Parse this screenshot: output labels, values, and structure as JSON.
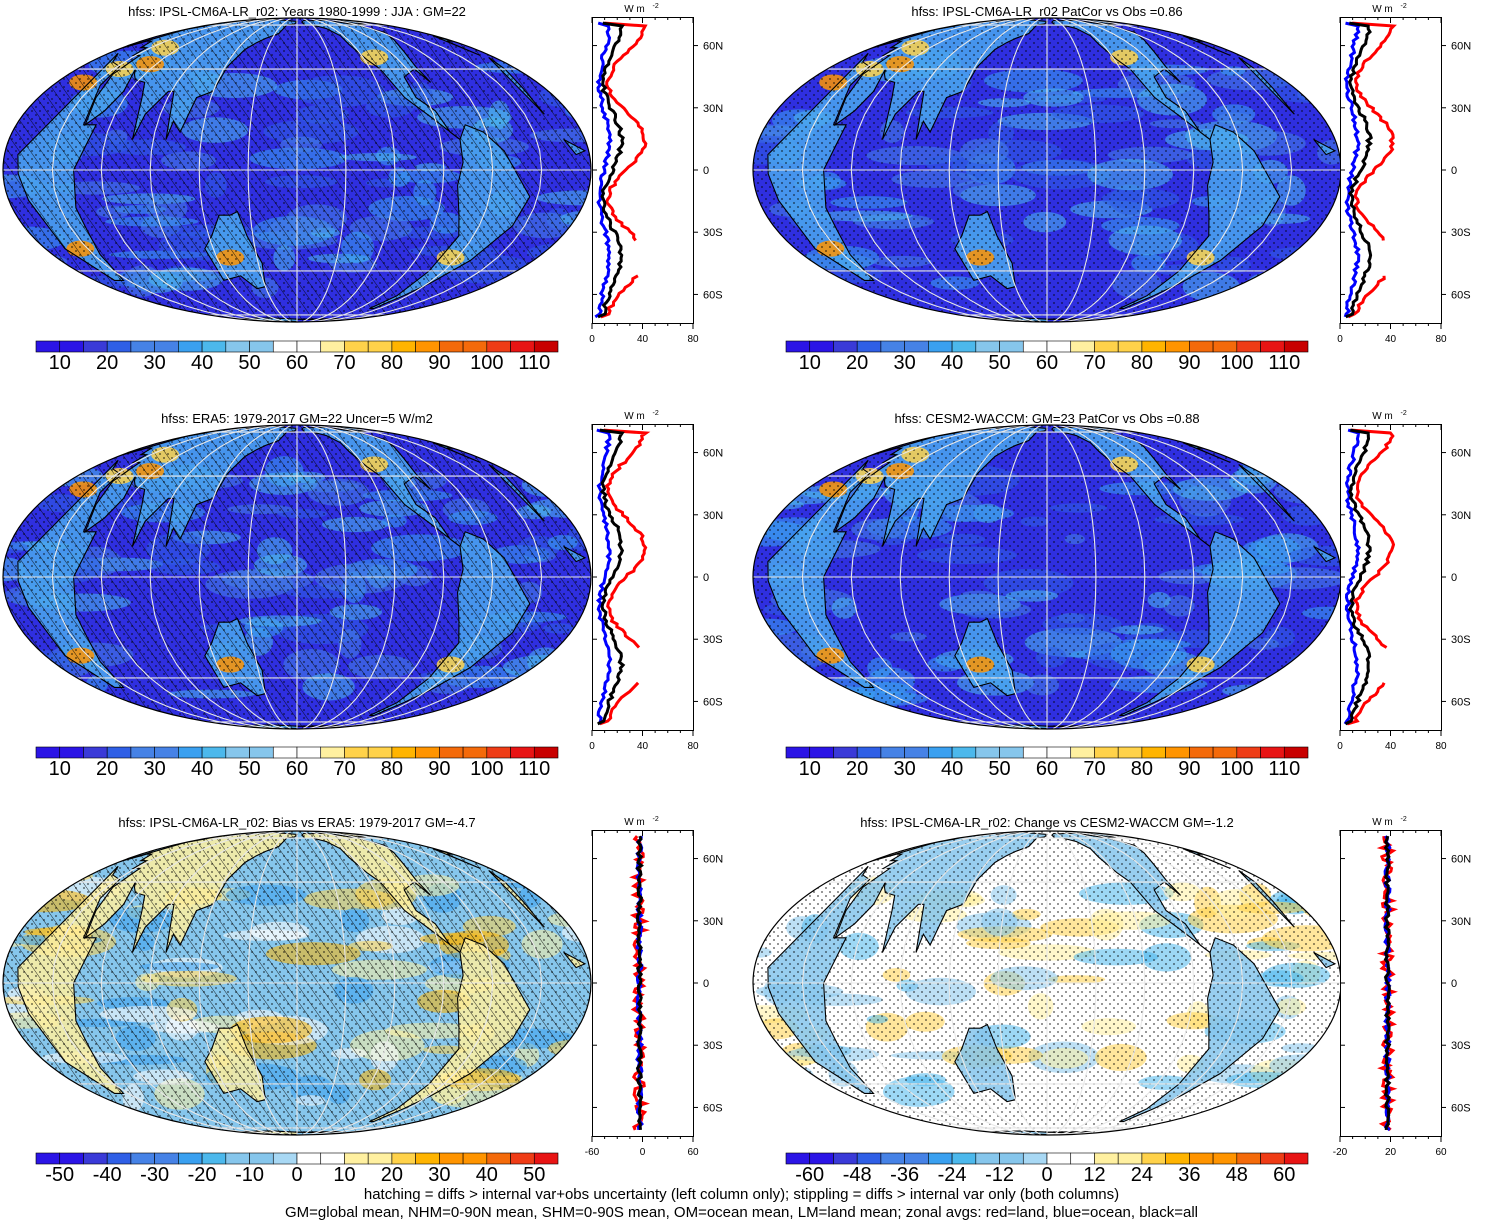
{
  "colors": {
    "palette": [
      "#2b14e6",
      "#3a3ad8",
      "#2f5fe6",
      "#4682e6",
      "#3aa0f0",
      "#4cb8ec",
      "#86c6ec",
      "#ffffff",
      "#ffffff",
      "#fff0a0",
      "#ffd24a",
      "#ffb400",
      "#ff9400",
      "#f46a0a",
      "#ef3c16",
      "#e81414",
      "#c80000"
    ],
    "ocean_dark": "#2f2fe0",
    "land_mid": "#4aa6ee",
    "bias_bg": "#86c6ec",
    "profile_land": "#ff0000",
    "profile_ocean": "#0000ff",
    "profile_all": "#000000"
  },
  "panels": [
    {
      "id": "p1",
      "title": "hfss: IPSL-CM6A-LR_r02: Years 1980-1999 : JJA : GM=22",
      "style": "mean",
      "hatch": true,
      "cbar": [
        "10",
        "20",
        "30",
        "40",
        "50",
        "60",
        "70",
        "80",
        "90",
        "100",
        "110"
      ],
      "prof_ticks": [
        "0",
        "40",
        "80"
      ],
      "unit": "W m",
      "lat_labels": [
        "60N",
        "30N",
        "0",
        "30S",
        "60S"
      ]
    },
    {
      "id": "p2",
      "title": "hfss: IPSL-CM6A-LR_r02 PatCor vs Obs =0.86",
      "style": "mean",
      "hatch": false,
      "cbar": [
        "10",
        "20",
        "30",
        "40",
        "50",
        "60",
        "70",
        "80",
        "90",
        "100",
        "110"
      ],
      "prof_ticks": [
        "0",
        "40",
        "80"
      ],
      "unit": "W m",
      "lat_labels": [
        "60N",
        "30N",
        "0",
        "30S",
        "60S"
      ]
    },
    {
      "id": "p3",
      "title": "hfss: ERA5: 1979-2017 GM=22 Uncer=5 W/m2",
      "style": "mean",
      "hatch": true,
      "cbar": [
        "10",
        "20",
        "30",
        "40",
        "50",
        "60",
        "70",
        "80",
        "90",
        "100",
        "110"
      ],
      "prof_ticks": [
        "0",
        "40",
        "80"
      ],
      "unit": "W m",
      "lat_labels": [
        "60N",
        "30N",
        "0",
        "30S",
        "60S"
      ]
    },
    {
      "id": "p4",
      "title": "hfss: CESM2-WACCM: GM=23 PatCor vs Obs =0.88",
      "style": "mean",
      "hatch": false,
      "cbar": [
        "10",
        "20",
        "30",
        "40",
        "50",
        "60",
        "70",
        "80",
        "90",
        "100",
        "110"
      ],
      "prof_ticks": [
        "0",
        "40",
        "80"
      ],
      "unit": "W m",
      "lat_labels": [
        "60N",
        "30N",
        "0",
        "30S",
        "60S"
      ]
    },
    {
      "id": "p5",
      "title": "hfss: IPSL-CM6A-LR_r02: Bias vs ERA5: 1979-2017 GM=-4.7",
      "style": "bias",
      "hatch": true,
      "cbar": [
        "-50",
        "-40",
        "-30",
        "-20",
        "-10",
        "0",
        "10",
        "20",
        "30",
        "40",
        "50"
      ],
      "prof_ticks": [
        "-60",
        "0",
        "60"
      ],
      "unit": "W m",
      "lat_labels": [
        "60N",
        "30N",
        "0",
        "30S",
        "60S"
      ]
    },
    {
      "id": "p6",
      "title": "hfss: IPSL-CM6A-LR_r02: Change vs CESM2-WACCM GM=-1.2",
      "style": "change",
      "hatch": false,
      "cbar": [
        "-60",
        "-48",
        "-36",
        "-24",
        "-12",
        "0",
        "12",
        "24",
        "36",
        "48",
        "60"
      ],
      "prof_ticks": [
        "-20",
        "20",
        "60"
      ],
      "unit": "W m",
      "lat_labels": [
        "60N",
        "30N",
        "0",
        "30S",
        "60S"
      ]
    }
  ],
  "footnote": {
    "line1": "hatching = diffs > internal var+obs uncertainty (left column only); stippling = diffs > internal var only (both columns)",
    "line2": "GM=global mean, NHM=0-90N mean, SHM=0-90S mean, OM=ocean mean, LM=land mean; zonal avgs: red=land, blue=ocean, black=all"
  }
}
